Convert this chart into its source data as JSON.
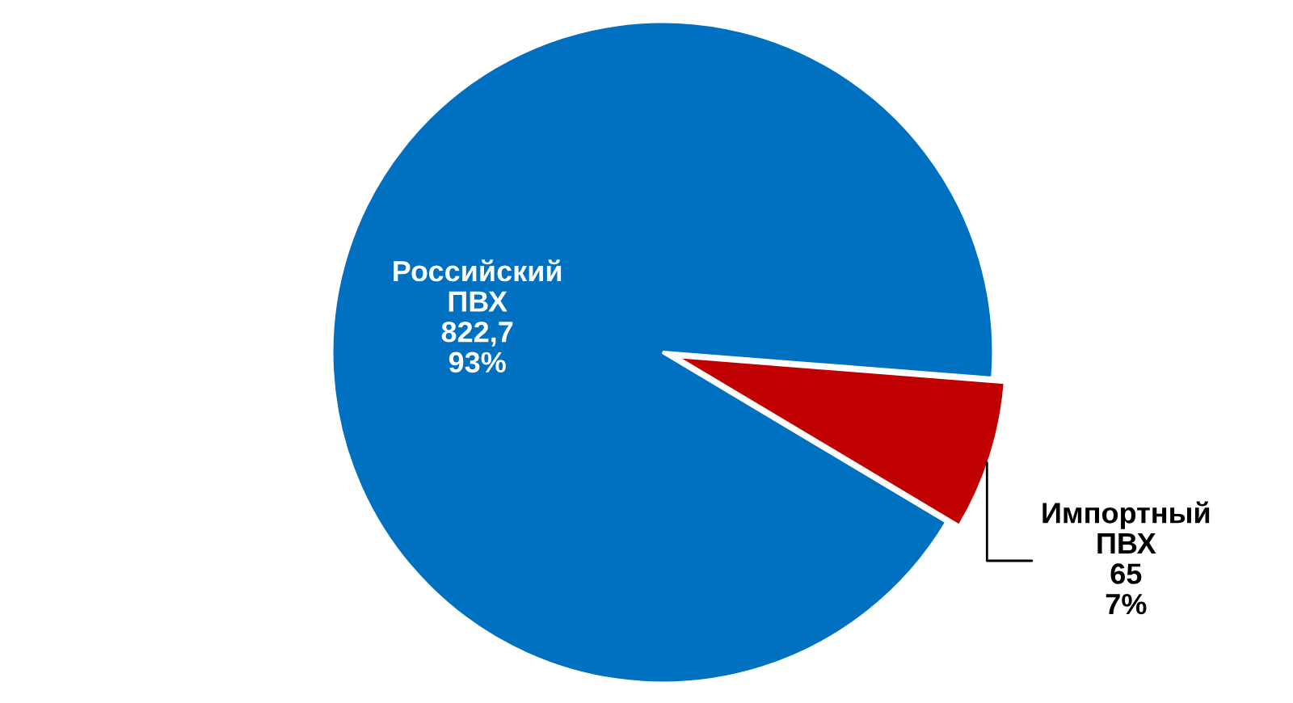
{
  "chart_data": {
    "type": "pie",
    "categories": [
      "Российский\nПВХ",
      "Импортный\nПВХ"
    ],
    "values": [
      822.7,
      65
    ],
    "value_labels": [
      "822,7\n93%",
      "65\n7%"
    ],
    "colors": [
      "#0070c0",
      "#c00000"
    ]
  }
}
